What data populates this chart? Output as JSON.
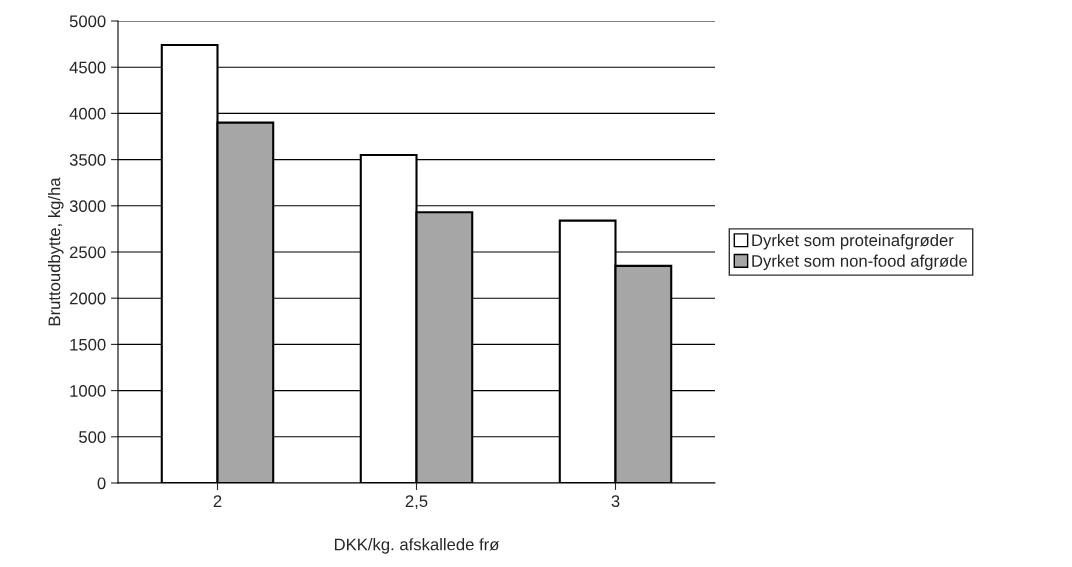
{
  "chart_data": {
    "type": "bar",
    "xlabel": "DKK/kg. afskallede frø",
    "ylabel": "Bruttoudbytte, kg/ha",
    "categories": [
      "2",
      "2,5",
      "3"
    ],
    "series": [
      {
        "name": "Dyrket som proteinafgrøder",
        "color": "#ffffff",
        "values": [
          4740,
          3550,
          2840
        ]
      },
      {
        "name": "Dyrket som non-food afgrøde",
        "color": "#a6a6a6",
        "values": [
          3900,
          2930,
          2350
        ]
      }
    ],
    "ylim": [
      0,
      5000
    ],
    "yticks": [
      0,
      500,
      1000,
      1500,
      2000,
      2500,
      3000,
      3500,
      4000,
      4500,
      5000
    ],
    "grid": "y",
    "legend": "right"
  }
}
